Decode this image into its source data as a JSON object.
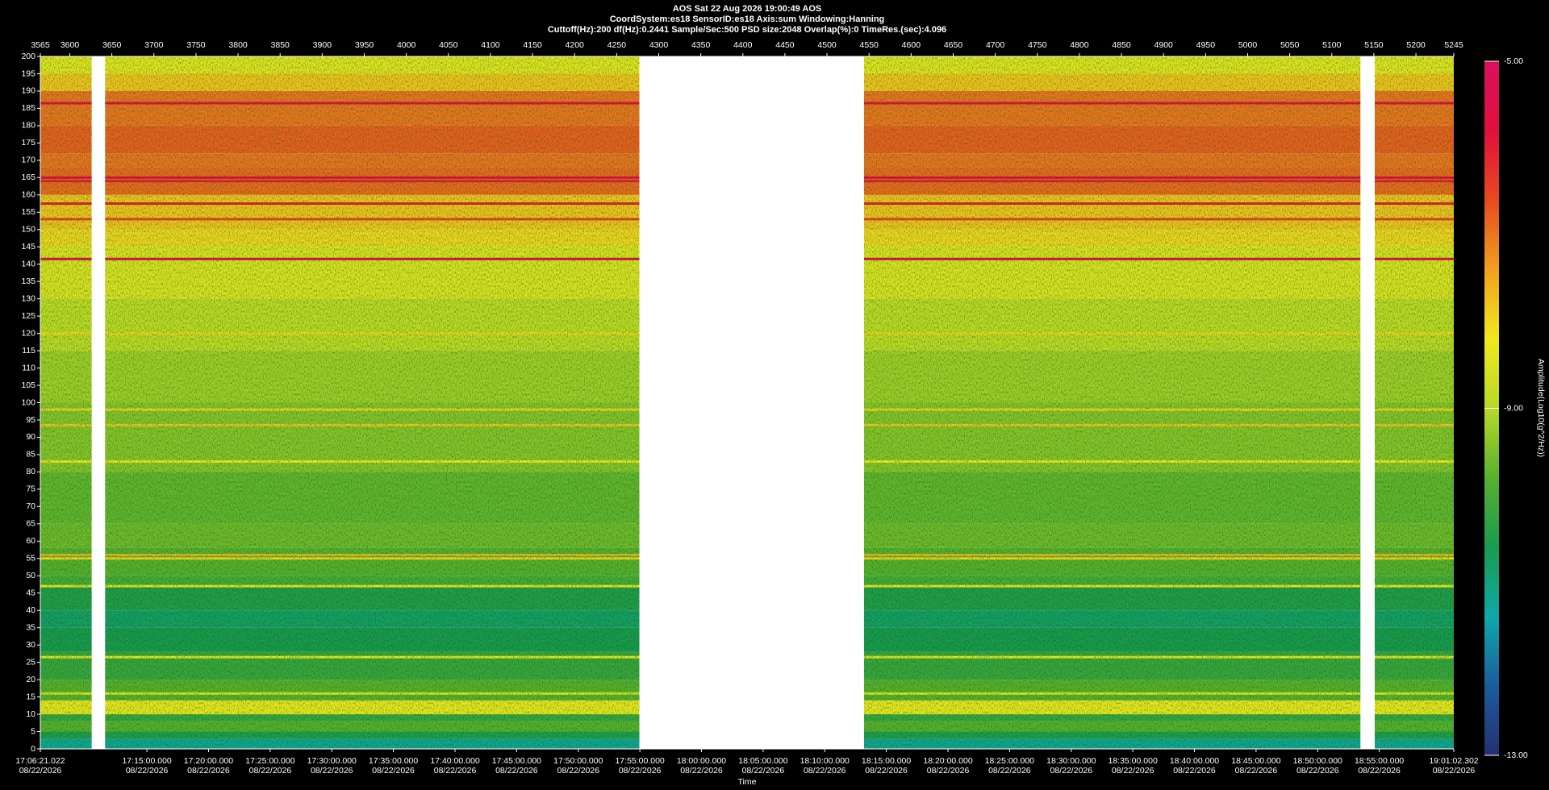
{
  "chart_data": {
    "type": "spectrogram",
    "title_lines": [
      "AOS  Sat 22 Aug 2026 19:00:49  AOS",
      "CoordSystem:es18    SensorID:es18    Axis:sum    Windowing:Hanning",
      "Cuttoff(Hz):200      df(Hz):0.2441     Sample/Sec:500      PSD size:2048      Overlap(%):0        TimeRes.(sec):4.096"
    ],
    "xlabel": "Time",
    "colorbar_label": "Amplitude(Log10(g^2/Hz))",
    "xlim": [
      3565,
      5245
    ],
    "xticks": [
      3565,
      3600,
      3650,
      3700,
      3750,
      3800,
      3850,
      3900,
      3950,
      4000,
      4050,
      4100,
      4150,
      4200,
      4250,
      4300,
      4350,
      4400,
      4450,
      4500,
      4550,
      4600,
      4650,
      4700,
      4750,
      4800,
      4850,
      4900,
      4950,
      5000,
      5050,
      5100,
      5150,
      5200,
      5245
    ],
    "time_ticks": [
      {
        "value": 3565,
        "label": "17:06:21.022"
      },
      {
        "value": 3691.7,
        "label": "17:15:00.000"
      },
      {
        "value": 3764.9,
        "label": "17:20:00.000"
      },
      {
        "value": 3838.2,
        "label": "17:25:00.000"
      },
      {
        "value": 3911.4,
        "label": "17:30:00.000"
      },
      {
        "value": 3984.6,
        "label": "17:35:00.000"
      },
      {
        "value": 4057.9,
        "label": "17:40:00.000"
      },
      {
        "value": 4131.1,
        "label": "17:45:00.000"
      },
      {
        "value": 4204.4,
        "label": "17:50:00.000"
      },
      {
        "value": 4277.6,
        "label": "17:55:00.000"
      },
      {
        "value": 4350.8,
        "label": "18:00:00.000"
      },
      {
        "value": 4424.1,
        "label": "18:05:00.000"
      },
      {
        "value": 4497.3,
        "label": "18:10:00.000"
      },
      {
        "value": 4570.5,
        "label": "18:15:00.000"
      },
      {
        "value": 4643.8,
        "label": "18:20:00.000"
      },
      {
        "value": 4717.0,
        "label": "18:25:00.000"
      },
      {
        "value": 4790.3,
        "label": "18:30:00.000"
      },
      {
        "value": 4863.5,
        "label": "18:35:00.000"
      },
      {
        "value": 4936.7,
        "label": "18:40:00.000"
      },
      {
        "value": 5010.0,
        "label": "18:45:00.000"
      },
      {
        "value": 5083.2,
        "label": "18:50:00.000"
      },
      {
        "value": 5156.4,
        "label": "18:55:00.000"
      },
      {
        "value": 5245,
        "label": "19:01:02.302"
      }
    ],
    "time_tick_date": "08/22/2026",
    "ylim": [
      0,
      200
    ],
    "yticks": [
      0,
      5,
      10,
      15,
      20,
      25,
      30,
      35,
      40,
      45,
      50,
      55,
      60,
      65,
      70,
      75,
      80,
      85,
      90,
      95,
      100,
      105,
      110,
      115,
      120,
      125,
      130,
      135,
      140,
      145,
      150,
      155,
      160,
      165,
      170,
      175,
      180,
      185,
      190,
      195,
      200
    ],
    "clim": [
      -13,
      -5
    ],
    "cticks": [
      {
        "value": -5,
        "label": "-5.00"
      },
      {
        "value": -9,
        "label": "-9.00"
      },
      {
        "value": -13,
        "label": "-13.00"
      }
    ],
    "colormap": [
      "#26306e",
      "#1b5c9e",
      "#10a8a8",
      "#1a9a50",
      "#58b030",
      "#b8d828",
      "#f0e820",
      "#f0a020",
      "#e84a20",
      "#e0103c",
      "#d81060"
    ],
    "data_spans": [
      [
        3565,
        3626
      ],
      [
        3642,
        4277
      ],
      [
        4544,
        5134
      ],
      [
        5151,
        5245
      ]
    ],
    "profile": {
      "bins": [
        0,
        3,
        5,
        8,
        10,
        14,
        20,
        28,
        35,
        40,
        47,
        50,
        58,
        65,
        80,
        100,
        115,
        130,
        145,
        150,
        160,
        168,
        172,
        180,
        190,
        195,
        200
      ],
      "amplitude": [
        -11.2,
        -10.5,
        -9.8,
        -10.2,
        -8.3,
        -9.8,
        -10.2,
        -10.6,
        -10.8,
        -10.5,
        -10.0,
        -9.8,
        -9.6,
        -9.7,
        -9.4,
        -9.2,
        -8.9,
        -8.5,
        -8.0,
        -7.8,
        -6.9,
        -7.0,
        -6.8,
        -7.0,
        -7.8,
        -8.4
      ]
    },
    "tonal_lines": {
      "freq": [
        186.5,
        165,
        164,
        157.5,
        153,
        141.5,
        120,
        98,
        93.5,
        83,
        56,
        55,
        47,
        26.5,
        16
      ],
      "amplitude": [
        -5.6,
        -5.6,
        -6.0,
        -6.0,
        -6.5,
        -5.5,
        -8.0,
        -8.0,
        -7.8,
        -8.2,
        -7.6,
        -8.0,
        -8.3,
        -8.3,
        -8.5
      ]
    }
  }
}
